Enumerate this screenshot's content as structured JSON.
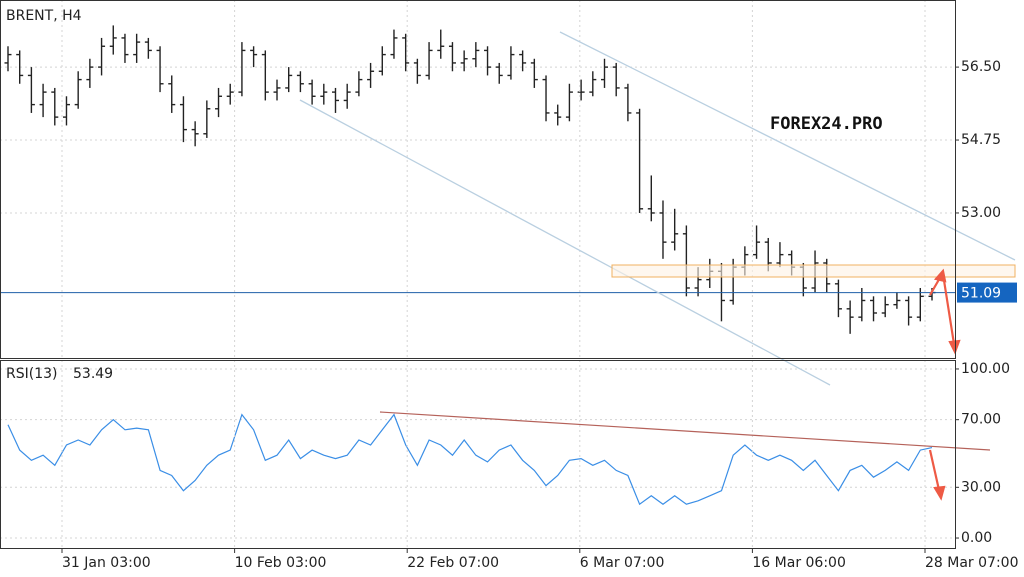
{
  "chart_data": [
    {
      "type": "ohlc",
      "title": "BRENT, H4",
      "color": "#222222",
      "bars": [
        [
          56.6,
          57.0,
          56.4,
          56.8
        ],
        [
          56.8,
          56.9,
          56.1,
          56.3
        ],
        [
          56.3,
          56.5,
          55.4,
          55.6
        ],
        [
          55.6,
          56.1,
          55.3,
          55.9
        ],
        [
          55.9,
          56.0,
          55.1,
          55.3
        ],
        [
          55.3,
          55.8,
          55.1,
          55.6
        ],
        [
          55.6,
          56.4,
          55.5,
          56.2
        ],
        [
          56.2,
          56.7,
          56.0,
          56.5
        ],
        [
          56.5,
          57.2,
          56.3,
          57.0
        ],
        [
          57.0,
          57.5,
          56.8,
          57.2
        ],
        [
          57.2,
          57.3,
          56.6,
          56.8
        ],
        [
          56.8,
          57.3,
          56.6,
          57.1
        ],
        [
          57.1,
          57.2,
          56.7,
          56.9
        ],
        [
          56.9,
          57.0,
          55.9,
          56.1
        ],
        [
          56.1,
          56.3,
          55.4,
          55.6
        ],
        [
          55.6,
          55.8,
          54.7,
          55.0
        ],
        [
          55.0,
          55.2,
          54.6,
          54.9
        ],
        [
          54.9,
          55.7,
          54.8,
          55.5
        ],
        [
          55.5,
          56.0,
          55.3,
          55.8
        ],
        [
          55.8,
          56.1,
          55.6,
          55.9
        ],
        [
          55.9,
          57.1,
          55.8,
          56.9
        ],
        [
          56.9,
          57.0,
          56.5,
          56.8
        ],
        [
          56.8,
          56.9,
          55.7,
          55.9
        ],
        [
          55.9,
          56.2,
          55.7,
          56.0
        ],
        [
          56.0,
          56.5,
          55.9,
          56.3
        ],
        [
          56.3,
          56.4,
          55.9,
          56.1
        ],
        [
          56.1,
          56.2,
          55.6,
          55.8
        ],
        [
          55.8,
          56.1,
          55.6,
          55.9
        ],
        [
          55.9,
          56.0,
          55.4,
          55.7
        ],
        [
          55.7,
          56.1,
          55.5,
          55.9
        ],
        [
          55.9,
          56.4,
          55.8,
          56.2
        ],
        [
          56.2,
          56.6,
          56.0,
          56.4
        ],
        [
          56.4,
          57.0,
          56.3,
          56.8
        ],
        [
          56.8,
          57.4,
          56.7,
          57.2
        ],
        [
          57.2,
          57.3,
          56.4,
          56.6
        ],
        [
          56.6,
          56.7,
          56.1,
          56.3
        ],
        [
          56.3,
          57.1,
          56.2,
          56.9
        ],
        [
          56.9,
          57.4,
          56.7,
          57.0
        ],
        [
          57.0,
          57.1,
          56.4,
          56.6
        ],
        [
          56.6,
          56.9,
          56.4,
          56.7
        ],
        [
          56.7,
          57.1,
          56.5,
          56.9
        ],
        [
          56.9,
          57.0,
          56.3,
          56.5
        ],
        [
          56.5,
          56.6,
          56.1,
          56.3
        ],
        [
          56.3,
          57.0,
          56.2,
          56.8
        ],
        [
          56.8,
          56.9,
          56.4,
          56.6
        ],
        [
          56.6,
          56.7,
          56.0,
          56.2
        ],
        [
          56.2,
          56.3,
          55.2,
          55.4
        ],
        [
          55.4,
          55.6,
          55.1,
          55.3
        ],
        [
          55.3,
          56.1,
          55.2,
          55.9
        ],
        [
          55.9,
          56.2,
          55.7,
          55.9
        ],
        [
          55.9,
          56.4,
          55.8,
          56.2
        ],
        [
          56.2,
          56.7,
          56.0,
          56.5
        ],
        [
          56.5,
          56.6,
          55.8,
          56.0
        ],
        [
          56.0,
          56.1,
          55.2,
          55.4
        ],
        [
          55.4,
          55.5,
          53.0,
          53.1
        ],
        [
          53.1,
          53.9,
          52.8,
          53.0
        ],
        [
          53.0,
          53.3,
          51.9,
          52.3
        ],
        [
          52.3,
          53.1,
          52.1,
          52.5
        ],
        [
          52.5,
          52.7,
          51.0,
          51.2
        ],
        [
          51.2,
          51.7,
          51.0,
          51.4
        ],
        [
          51.4,
          51.9,
          51.2,
          51.6
        ],
        [
          51.6,
          51.8,
          50.4,
          50.9
        ],
        [
          50.9,
          51.9,
          50.8,
          51.7
        ],
        [
          51.7,
          52.2,
          51.5,
          52.0
        ],
        [
          52.0,
          52.7,
          51.9,
          52.3
        ],
        [
          52.3,
          52.4,
          51.6,
          51.8
        ],
        [
          51.8,
          52.3,
          51.7,
          52.0
        ],
        [
          52.0,
          52.1,
          51.5,
          51.7
        ],
        [
          51.7,
          51.8,
          51.0,
          51.2
        ],
        [
          51.2,
          52.1,
          51.1,
          51.8
        ],
        [
          51.8,
          51.9,
          51.1,
          51.3
        ],
        [
          51.3,
          51.4,
          50.5,
          50.7
        ],
        [
          50.7,
          50.9,
          50.1,
          50.5
        ],
        [
          50.5,
          51.2,
          50.4,
          50.9
        ],
        [
          50.9,
          51.0,
          50.4,
          50.6
        ],
        [
          50.6,
          51.0,
          50.5,
          50.8
        ],
        [
          50.8,
          51.1,
          50.7,
          50.9
        ],
        [
          50.9,
          51.0,
          50.3,
          50.5
        ],
        [
          50.5,
          51.2,
          50.4,
          51.0
        ],
        [
          51.0,
          51.2,
          50.9,
          51.09
        ]
      ],
      "ylim": [
        49.52,
        58.11
      ],
      "yticks": [
        {
          "value": 56.5,
          "label": "56.50"
        },
        {
          "value": 54.75,
          "label": "54.75"
        },
        {
          "value": 53.0,
          "label": "53.00"
        }
      ],
      "grid": true,
      "annotation": "FOREX24.PRO"
    },
    {
      "type": "line",
      "title": "RSI(13)",
      "color": "#3a8ee6",
      "values": [
        67,
        52,
        46,
        49,
        43,
        55,
        58,
        55,
        64,
        70,
        64,
        65,
        64,
        40,
        37,
        28,
        34,
        43,
        49,
        52,
        73,
        64,
        46,
        49,
        58,
        47,
        52,
        49,
        47,
        49,
        58,
        55,
        64,
        73,
        55,
        43,
        58,
        55,
        49,
        58,
        49,
        45,
        52,
        55,
        46,
        40,
        31,
        37,
        46,
        47,
        43,
        46,
        40,
        37,
        20,
        25,
        20,
        25,
        20,
        22,
        25,
        28,
        49,
        55,
        49,
        46,
        49,
        46,
        40,
        46,
        37,
        28,
        40,
        43,
        36,
        40,
        45,
        40,
        52,
        53.49
      ],
      "ylim": [
        -5.9,
        105.3
      ],
      "yticks": [
        {
          "value": 100,
          "label": "100.00"
        },
        {
          "value": 70,
          "label": "70.00"
        },
        {
          "value": 30,
          "label": "30.00"
        },
        {
          "value": 0,
          "label": "0.00"
        }
      ],
      "grid": true,
      "x_labels": [
        "31 Jan 03:00",
        "10 Feb 03:00",
        "22 Feb 07:00",
        "6 Mar 07:00",
        "16 Mar 06:00",
        "28 Mar 07:00"
      ]
    }
  ]
}
